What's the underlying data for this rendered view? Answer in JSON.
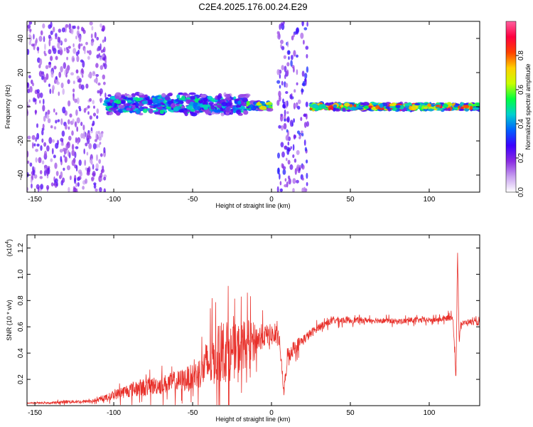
{
  "title": "C2E4.2025.176.00.24.E29",
  "chart_data": [
    {
      "type": "heatmap",
      "xlabel": "Height of straight line (km)",
      "ylabel": "Frequency (Hz)",
      "xlim": [
        -155,
        132
      ],
      "ylim": [
        -50,
        50
      ],
      "x_ticks": [
        -150,
        -100,
        -50,
        0,
        50,
        100
      ],
      "y_ticks": [
        -40,
        -20,
        0,
        20,
        40
      ],
      "colorbar": {
        "label": "Normalized spectral amplitude",
        "range": [
          0,
          1
        ],
        "ticks": [
          0.0,
          0.2,
          0.4,
          0.6,
          0.8
        ],
        "tick_labels": [
          "0.0",
          "0.2",
          "0.4",
          "0.6",
          "0.8"
        ],
        "colormap": [
          "#ffffff",
          "#c8a0f0",
          "#8a2be2",
          "#3c00ff",
          "#0060ff",
          "#00d0d0",
          "#00ff40",
          "#c8ff00",
          "#ffd000",
          "#ff4000",
          "#ff0040",
          "#ff60a0"
        ]
      },
      "regions": [
        {
          "x_range": [
            -155,
            -105
          ],
          "f_range": [
            -50,
            50
          ],
          "level": 0.2,
          "pattern": "scattered"
        },
        {
          "x_range": [
            -105,
            -15
          ],
          "f_range": [
            -5,
            8
          ],
          "level": 0.4,
          "pattern": "band"
        },
        {
          "x_range": [
            -15,
            0
          ],
          "f_range": [
            -2,
            3
          ],
          "level": 0.55,
          "pattern": "band"
        },
        {
          "x_range": [
            4,
            23
          ],
          "f_range": [
            -50,
            50
          ],
          "level": 0.25,
          "pattern": "scattered"
        },
        {
          "x_range": [
            25,
            132
          ],
          "f_range": [
            -2,
            2
          ],
          "level": 0.7,
          "pattern": "narrow-band"
        }
      ]
    },
    {
      "type": "line",
      "xlabel": "Height of straight line (km)",
      "ylabel": "SNR (10 * v/v)",
      "y_multiplier": "(x10",
      "y_multiplier_exp": "4",
      "y_multiplier_close": ")",
      "xlim": [
        -155,
        132
      ],
      "ylim": [
        0,
        1.3
      ],
      "x_ticks": [
        -150,
        -100,
        -50,
        0,
        50,
        100
      ],
      "y_ticks": [
        0.2,
        0.4,
        0.6,
        0.8,
        1.0,
        1.2
      ],
      "series": [
        {
          "color": "#e8302a",
          "x": [
            -155,
            -140,
            -130,
            -120,
            -110,
            -100,
            -90,
            -80,
            -70,
            -60,
            -50,
            -45,
            -40,
            -35,
            -30,
            -25,
            -20,
            -15,
            -10,
            -5,
            0,
            5,
            8,
            10,
            15,
            20,
            25,
            30,
            35,
            40,
            50,
            60,
            70,
            80,
            90,
            100,
            110,
            115,
            117,
            118,
            119,
            120,
            125,
            132
          ],
          "y": [
            0.02,
            0.02,
            0.03,
            0.03,
            0.04,
            0.08,
            0.12,
            0.14,
            0.16,
            0.18,
            0.22,
            0.26,
            0.32,
            0.38,
            0.42,
            0.4,
            0.44,
            0.48,
            0.5,
            0.53,
            0.54,
            0.5,
            0.08,
            0.38,
            0.45,
            0.5,
            0.55,
            0.6,
            0.63,
            0.65,
            0.65,
            0.65,
            0.65,
            0.64,
            0.65,
            0.65,
            0.66,
            0.68,
            0.2,
            1.2,
            0.5,
            0.62,
            0.64,
            0.63
          ],
          "noise": [
            0.005,
            0.01,
            0.02,
            0.015,
            0.02,
            0.05,
            0.08,
            0.1,
            0.1,
            0.12,
            0.14,
            0.18,
            0.3,
            0.3,
            0.35,
            0.3,
            0.28,
            0.25,
            0.18,
            0.12,
            0.12,
            0.08,
            0.05,
            0.1,
            0.08,
            0.06,
            0.05,
            0.04,
            0.04,
            0.04,
            0.035,
            0.03,
            0.03,
            0.03,
            0.03,
            0.03,
            0.03,
            0.04,
            0.05,
            0.05,
            0.04,
            0.03,
            0.03,
            0.03
          ]
        }
      ]
    }
  ]
}
